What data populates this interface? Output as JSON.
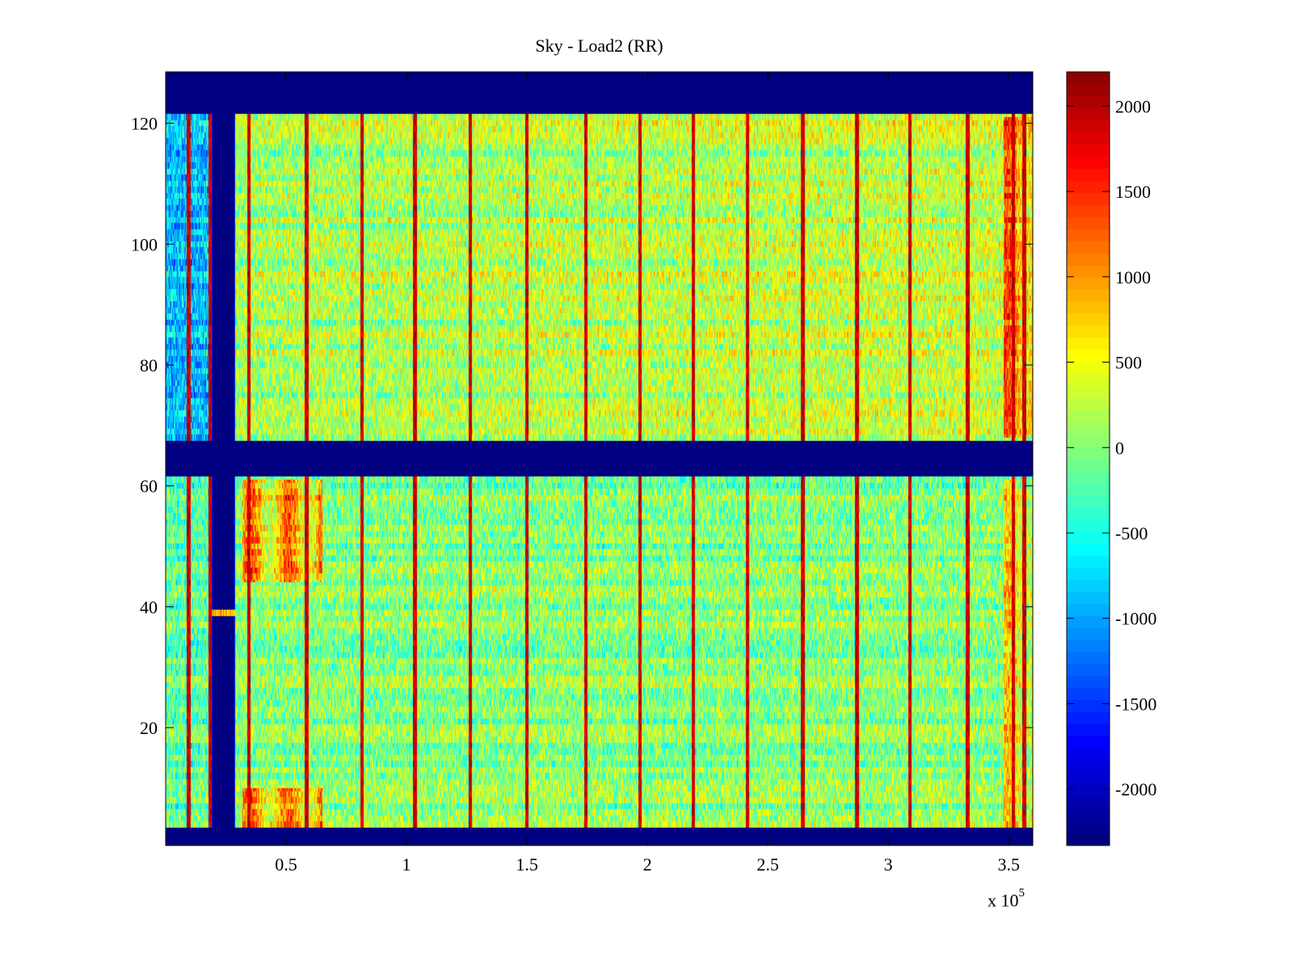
{
  "chart_data": {
    "type": "heatmap",
    "title": "Sky - Load2 (RR)",
    "xlabel": "",
    "ylabel": "",
    "x_multiplier_label": "x 10",
    "x_multiplier_exponent": "5",
    "xlim": [
      0,
      3.6
    ],
    "ylim": [
      0.5,
      128.5
    ],
    "x_ticks": [
      0.5,
      1,
      1.5,
      2,
      2.5,
      3,
      3.5
    ],
    "x_tick_labels": [
      "0.5",
      "1",
      "1.5",
      "2",
      "2.5",
      "3",
      "3.5"
    ],
    "y_ticks": [
      20,
      40,
      60,
      80,
      100,
      120
    ],
    "y_tick_labels": [
      "20",
      "40",
      "60",
      "80",
      "100",
      "120"
    ],
    "colormap": "jet",
    "clim": [
      -2330,
      2200
    ],
    "colorbar": {
      "ticks": [
        2000,
        1500,
        1000,
        500,
        0,
        -500,
        -1000,
        -1500,
        -2000
      ],
      "tick_labels": [
        "2000",
        "1500",
        "1000",
        "500",
        "0",
        "-500",
        "-1000",
        "-1500",
        "-2000"
      ]
    },
    "grid": false,
    "masked_row_bands": [
      [
        0.5,
        3.5
      ],
      [
        61.5,
        67.5
      ],
      [
        121.5,
        128.5
      ]
    ],
    "masked_column_band": [
      0.19,
      0.29
    ],
    "unmasked_stripe_row": 39,
    "streak_columns": [
      0.095,
      0.185,
      0.345,
      0.585,
      0.815,
      1.035,
      1.265,
      1.5,
      1.745,
      1.97,
      2.19,
      2.415,
      2.645,
      2.87,
      3.09,
      3.33,
      3.52,
      3.565
    ],
    "hot_regions": [
      {
        "x": [
          0.32,
          0.65
        ],
        "y": [
          44,
          61
        ],
        "level": 1300
      },
      {
        "x": [
          0.32,
          0.65
        ],
        "y": [
          3.5,
          10
        ],
        "level": 1200
      },
      {
        "x": [
          3.48,
          3.6
        ],
        "y": [
          68,
          121
        ],
        "level": 1100
      },
      {
        "x": [
          3.48,
          3.6
        ],
        "y": [
          3.5,
          61
        ],
        "level": 800
      }
    ],
    "background_level": {
      "left_of_gap_top": -900,
      "left_of_gap_bottom": -200,
      "right_top": 300,
      "right_bottom": 0
    },
    "mask_value": -2330
  }
}
